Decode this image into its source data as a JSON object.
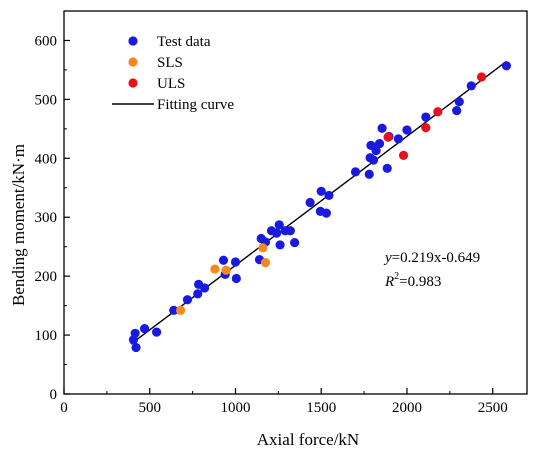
{
  "chart_data": {
    "type": "scatter",
    "xlabel": "Axial force/kN",
    "ylabel": "Bending moment/kN·m",
    "xlim": [
      0,
      2700
    ],
    "ylim": [
      0,
      650
    ],
    "xticks": [
      0,
      500,
      1000,
      1500,
      2000,
      2500
    ],
    "yticks": [
      0,
      100,
      200,
      300,
      400,
      500,
      600
    ],
    "grid": false,
    "legend_position": "top-left",
    "legend": [
      {
        "label": "Test data",
        "color": "#1a1adf",
        "kind": "marker"
      },
      {
        "label": "SLS",
        "color": "#f5891f",
        "kind": "marker"
      },
      {
        "label": "ULS",
        "color": "#e8111b",
        "kind": "marker"
      },
      {
        "label": "Fitting curve",
        "color": "#000000",
        "kind": "line"
      }
    ],
    "series": [
      {
        "name": "Test data",
        "color": "#1a1adf",
        "points": [
          [
            405,
            92
          ],
          [
            415,
            103
          ],
          [
            420,
            79
          ],
          [
            470,
            111
          ],
          [
            540,
            105
          ],
          [
            640,
            142
          ],
          [
            720,
            160
          ],
          [
            780,
            170
          ],
          [
            785,
            186
          ],
          [
            820,
            180
          ],
          [
            930,
            227
          ],
          [
            940,
            203
          ],
          [
            1000,
            224
          ],
          [
            1005,
            196
          ],
          [
            1140,
            228
          ],
          [
            1150,
            264
          ],
          [
            1175,
            258
          ],
          [
            1210,
            277
          ],
          [
            1240,
            273
          ],
          [
            1255,
            287
          ],
          [
            1260,
            253
          ],
          [
            1290,
            277
          ],
          [
            1320,
            277
          ],
          [
            1345,
            257
          ],
          [
            1435,
            325
          ],
          [
            1495,
            310
          ],
          [
            1500,
            344
          ],
          [
            1530,
            307
          ],
          [
            1545,
            337
          ],
          [
            1700,
            377
          ],
          [
            1780,
            373
          ],
          [
            1785,
            401
          ],
          [
            1790,
            422
          ],
          [
            1805,
            397
          ],
          [
            1820,
            413
          ],
          [
            1840,
            425
          ],
          [
            1855,
            451
          ],
          [
            1885,
            383
          ],
          [
            1895,
            437
          ],
          [
            1950,
            433
          ],
          [
            2000,
            448
          ],
          [
            2110,
            470
          ],
          [
            2290,
            481
          ],
          [
            2305,
            496
          ],
          [
            2375,
            523
          ],
          [
            2580,
            557
          ]
        ]
      },
      {
        "name": "SLS",
        "color": "#f5891f",
        "points": [
          [
            680,
            142
          ],
          [
            880,
            212
          ],
          [
            945,
            210
          ],
          [
            1160,
            248
          ],
          [
            1175,
            223
          ]
        ]
      },
      {
        "name": "ULS",
        "color": "#e8111b",
        "points": [
          [
            1890,
            436
          ],
          [
            1980,
            405
          ],
          [
            2110,
            452
          ],
          [
            2180,
            479
          ],
          [
            2435,
            538
          ]
        ]
      }
    ],
    "fitting_curve": {
      "name": "Fitting curve",
      "slope": 0.219,
      "intercept": -0.649,
      "x_range": [
        390,
        2580
      ]
    },
    "annotation": {
      "equation_prefix": "y",
      "equation_rest": "=0.219x-0.649",
      "r2_label": "R",
      "r2_sup": "2",
      "r2_value": "=0.983"
    }
  }
}
